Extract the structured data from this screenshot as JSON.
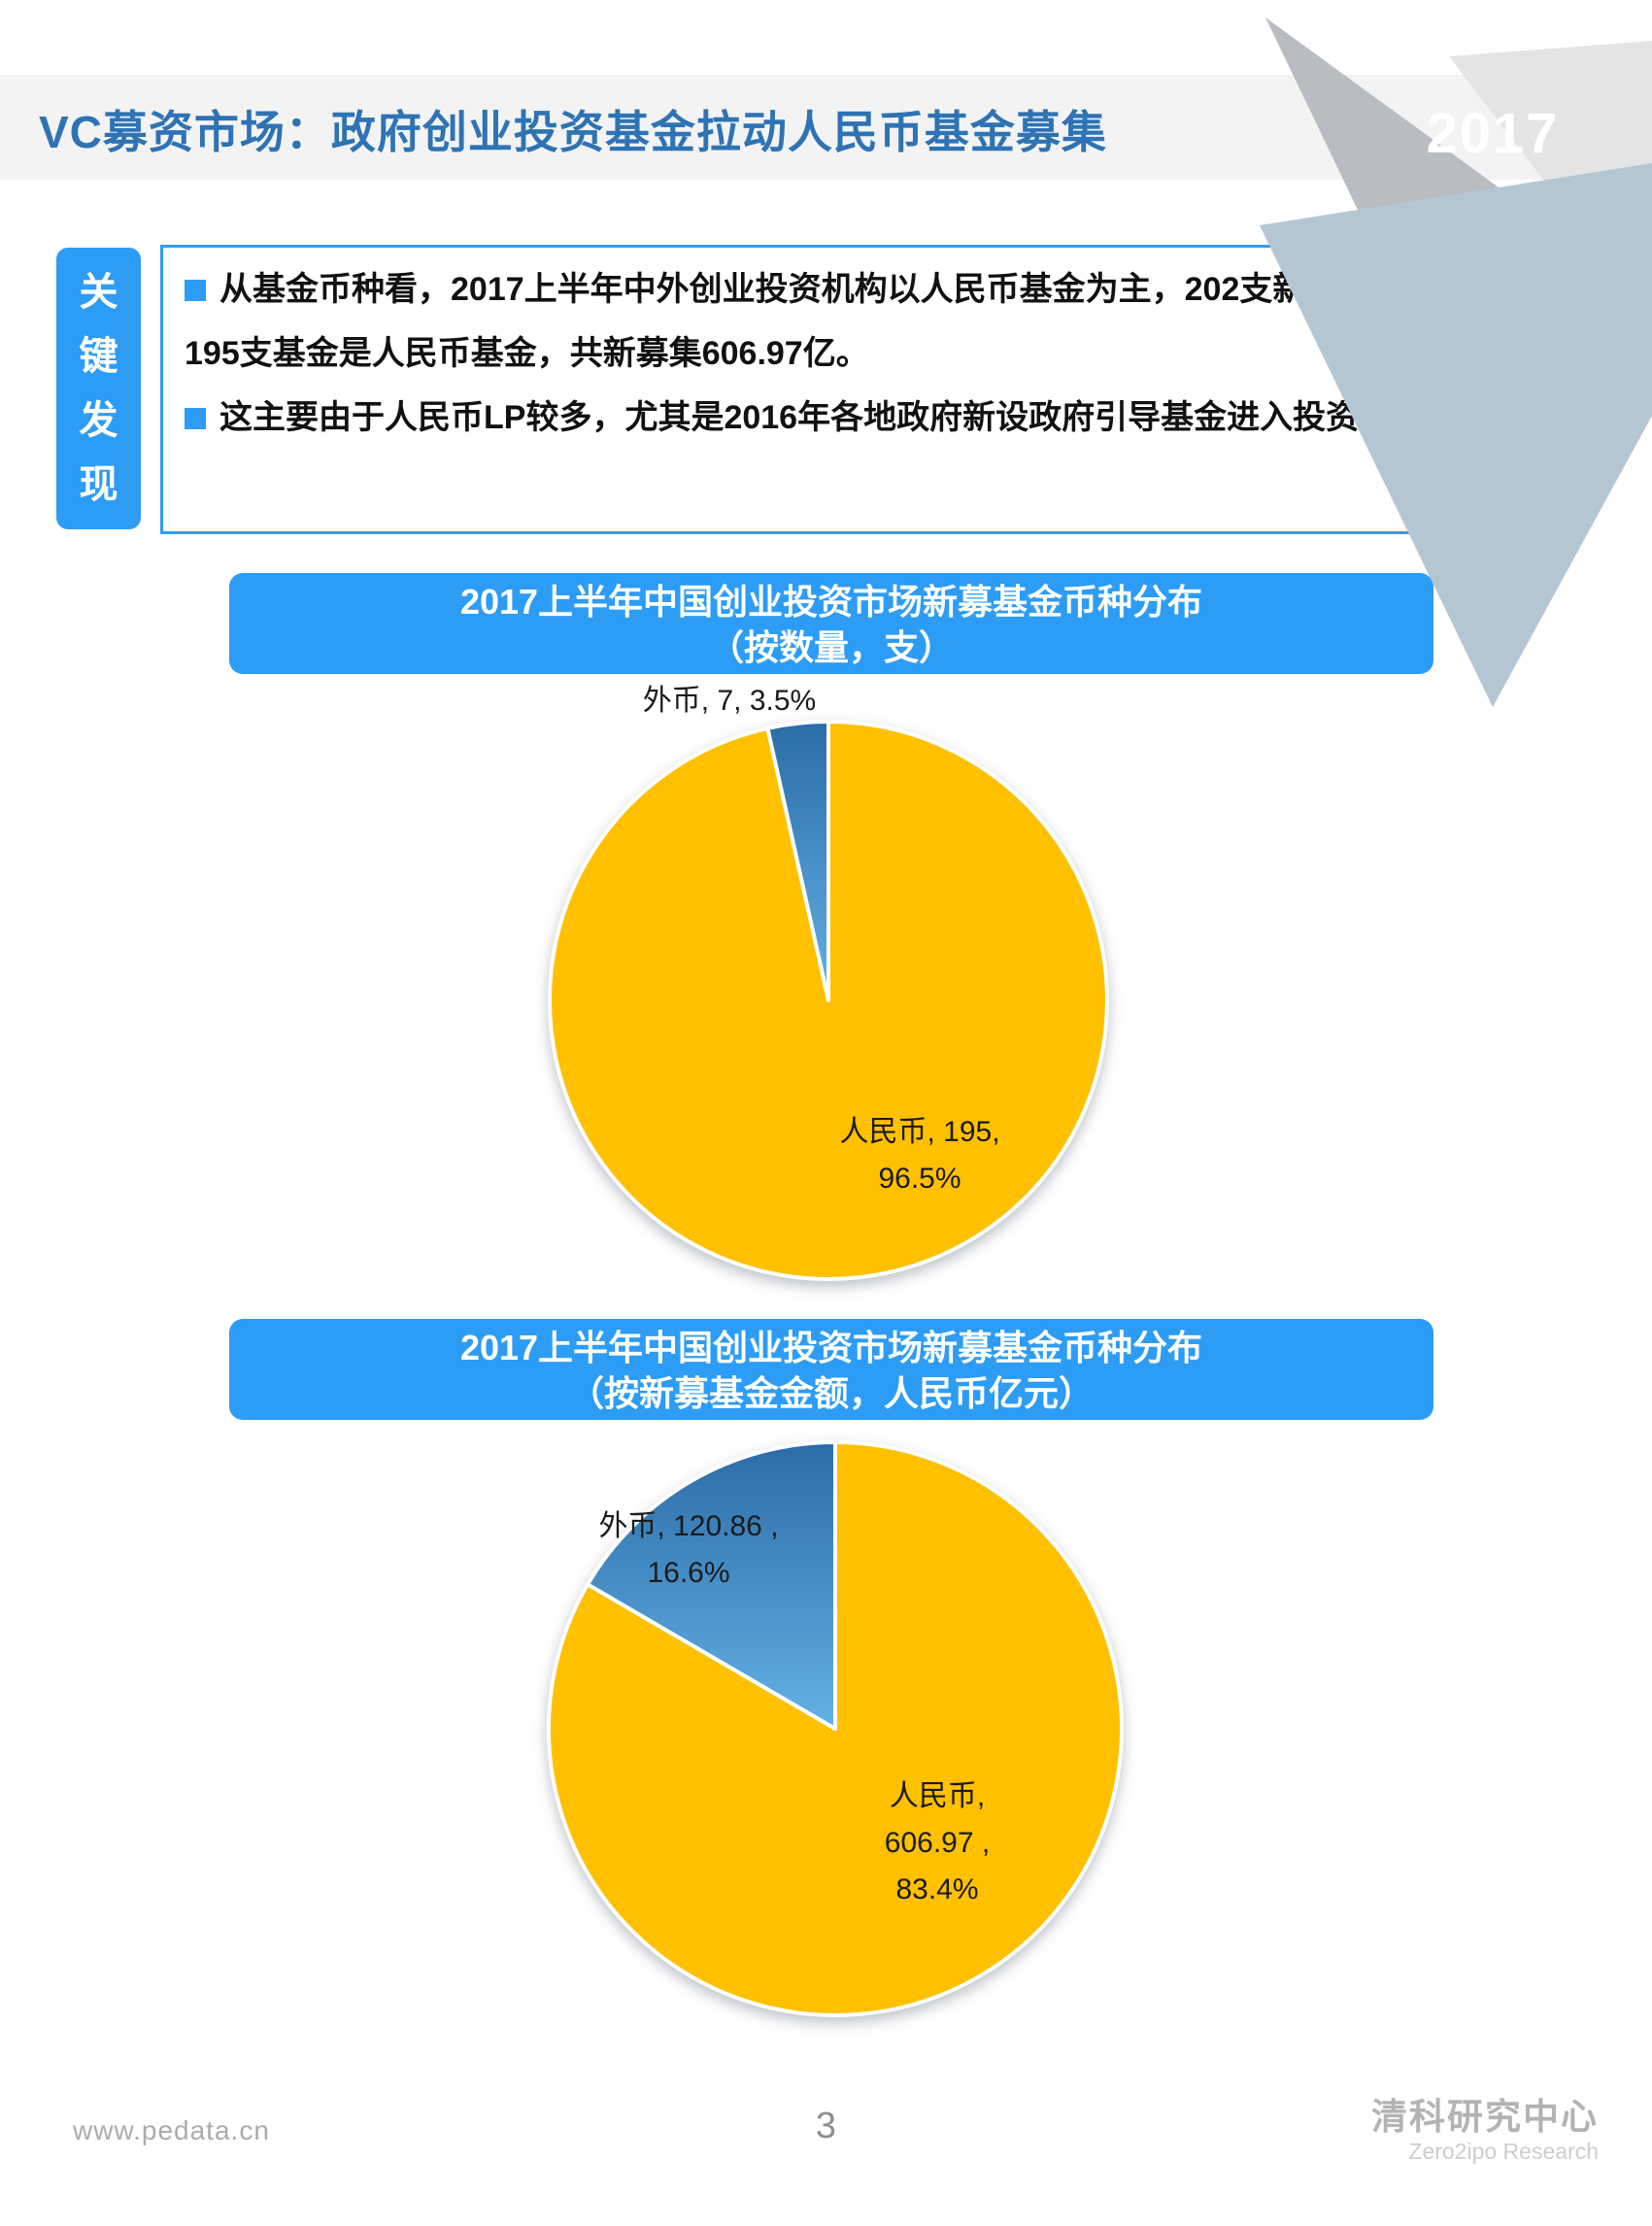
{
  "header": {
    "title": "VC募资市场：政府创业投资基金拉动人民币基金募集",
    "year": "2017"
  },
  "key_findings": {
    "tab_chars": [
      "关",
      "键",
      "发",
      "现"
    ],
    "items": [
      "从基金币种看，2017上半年中外创业投资机构以人民币基金为主，202支新募集基金中有195支基金是人民币基金，共新募集606.97亿。",
      "这主要由于人民币LP较多，尤其是2016年各地政府新设政府引导基金进入投资期。"
    ]
  },
  "charts": [
    {
      "banner_line1": "2017上半年中国创业投资市场新募基金币种分布",
      "banner_line2": "（按数量，支）",
      "outer_label": "外币, 7, 3.5%",
      "inner_label_line1": "人民币, 195,",
      "inner_label_line2": "96.5%"
    },
    {
      "banner_line1": "2017上半年中国创业投资市场新募基金币种分布",
      "banner_line2": "（按新募基金金额，人民币亿元）",
      "blue_label_line1": "外币, 120.86 ,",
      "blue_label_line2": "16.6%",
      "inner_label_line1": "人民币,",
      "inner_label_line2": "606.97 ,",
      "inner_label_line3": "83.4%"
    }
  ],
  "chart_data": [
    {
      "type": "pie",
      "title": "2017上半年中国创业投资市场新募基金币种分布（按数量，支）",
      "unit": "支",
      "legend": "none, data labels on slices",
      "slices": [
        {
          "label": "人民币",
          "value": 195,
          "pct": 96.5,
          "color": "#FFC000"
        },
        {
          "label": "外币",
          "value": 7,
          "pct": 3.5,
          "color": "blue gradient #2B6CA8 to #64B1E4"
        }
      ]
    },
    {
      "type": "pie",
      "title": "2017上半年中国创业投资市场新募基金币种分布（按新募基金金额，人民币亿元）",
      "unit": "人民币亿元",
      "legend": "none, data labels on slices",
      "slices": [
        {
          "label": "人民币",
          "value": 606.97,
          "pct": 83.4,
          "color": "#FFC000"
        },
        {
          "label": "外币",
          "value": 120.86,
          "pct": 16.6,
          "color": "blue gradient #2B6CA8 to #64B1E4"
        }
      ]
    }
  ],
  "colors": {
    "accent_blue": "#2d9cf5",
    "title_blue": "#2e73b4",
    "pie_yellow": "#FFC000",
    "pie_blue_top": "#2B6CA8",
    "pie_blue_bottom": "#64B1E4"
  },
  "footer": {
    "website": "www.pedata.cn",
    "page_number": "3",
    "logo_cn": "清科研究中心",
    "logo_en": "Zero2ipo Research"
  }
}
